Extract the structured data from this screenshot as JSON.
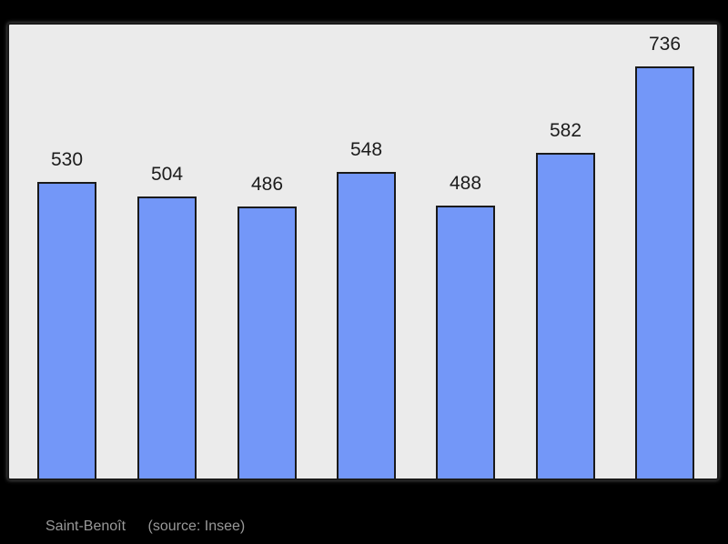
{
  "caption": {
    "commune": "Saint-Benoît",
    "source": "(source: Insee)"
  },
  "chart_data": {
    "type": "bar",
    "values": [
      530,
      504,
      486,
      548,
      488,
      582,
      736
    ],
    "title": "",
    "xlabel": "",
    "ylabel": "",
    "baseline": 0,
    "grid": false,
    "legend": false,
    "value_labels_shown": true
  },
  "colors": {
    "page_bg": "#000000",
    "plot_bg": "#EBEBEB",
    "frame_border": "#1A1A1A",
    "bar_fill": "#7397F8",
    "bar_border": "#1A1A1A",
    "value_label": "#1C1C1C",
    "caption_text": "#999999"
  }
}
